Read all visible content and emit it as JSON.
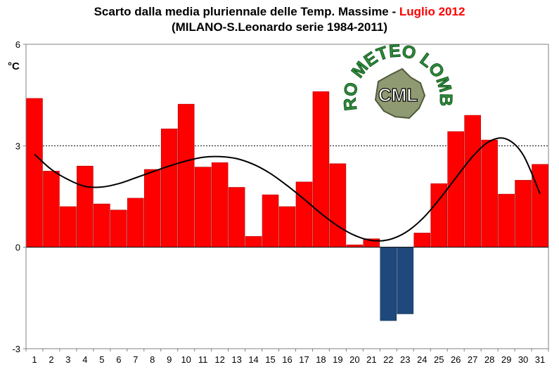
{
  "chart_data": {
    "type": "bar",
    "title": "Scarto dalla media pluriennale delle Temp. Massime - ",
    "title_highlight": "Luglio 2012",
    "subtitle": "(MILANO-S.Leonardo serie 1984-2011)",
    "ylabel": "°C",
    "xlabel": "",
    "ylim": [
      -3,
      6
    ],
    "yticks": [
      -3,
      0,
      3,
      6
    ],
    "reference_line": 3,
    "categories": [
      "1",
      "2",
      "3",
      "4",
      "5",
      "6",
      "7",
      "8",
      "9",
      "10",
      "11",
      "12",
      "13",
      "14",
      "15",
      "16",
      "17",
      "18",
      "19",
      "20",
      "21",
      "22",
      "23",
      "24",
      "25",
      "26",
      "27",
      "28",
      "29",
      "30",
      "31"
    ],
    "values": [
      4.4,
      2.25,
      1.2,
      2.4,
      1.28,
      1.1,
      1.45,
      2.3,
      3.5,
      4.23,
      2.37,
      2.5,
      1.77,
      0.32,
      1.55,
      1.2,
      1.93,
      4.6,
      2.47,
      0.07,
      0.25,
      -2.17,
      -1.97,
      0.42,
      1.88,
      3.42,
      3.9,
      3.17,
      1.57,
      1.98,
      2.45
    ],
    "trend": [
      2.75,
      2.3,
      2.0,
      1.8,
      1.78,
      1.88,
      2.05,
      2.23,
      2.4,
      2.55,
      2.66,
      2.68,
      2.62,
      2.45,
      2.18,
      1.82,
      1.42,
      1.0,
      0.63,
      0.35,
      0.2,
      0.22,
      0.43,
      0.83,
      1.4,
      2.05,
      2.68,
      3.13,
      3.2,
      2.73,
      1.58
    ],
    "colors": {
      "positive": "#ff0000",
      "negative": "#1f497d",
      "trend": "#000000"
    }
  },
  "logo": {
    "text_top": "CENTRO METEO LOMBARDO",
    "text_center": "CML"
  }
}
